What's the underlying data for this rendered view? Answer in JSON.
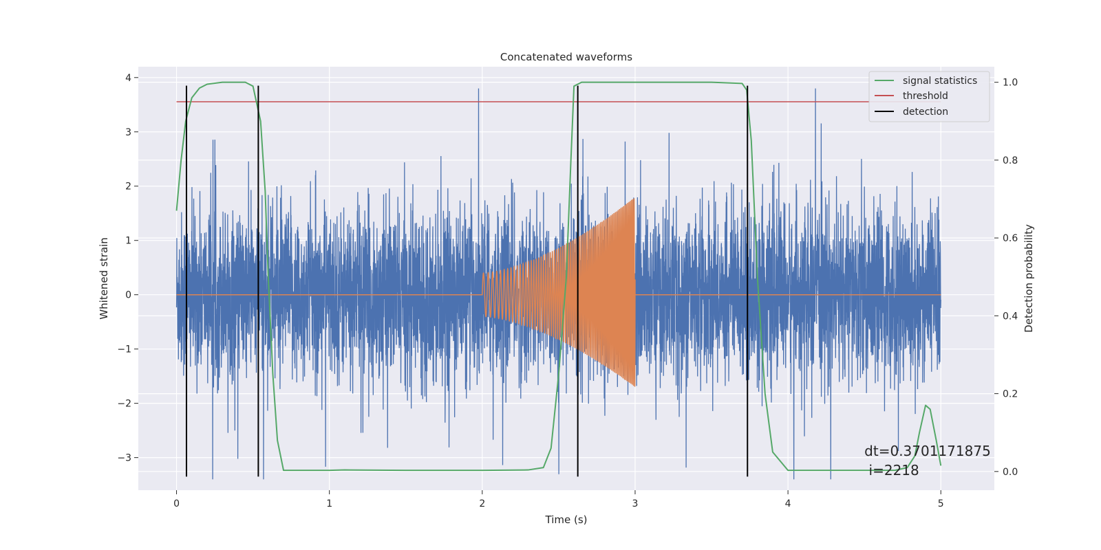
{
  "chart_data": {
    "type": "line",
    "title": "Concatenated waveforms",
    "xlabel": "Time (s)",
    "ylabel": "Whitened strain",
    "ylabel_right": "Detection probability",
    "xlim": [
      -0.25,
      5.35
    ],
    "ylim": [
      -3.6,
      4.2
    ],
    "ylim_right": [
      -0.048,
      1.04
    ],
    "xticks": [
      0,
      1,
      2,
      3,
      4,
      5
    ],
    "yticks": [
      -3,
      -2,
      -1,
      0,
      1,
      2,
      3,
      4
    ],
    "yticks_right": [
      0.0,
      0.2,
      0.4,
      0.6,
      0.8,
      1.0
    ],
    "xtick_labels": [
      "0",
      "1",
      "2",
      "3",
      "4",
      "5"
    ],
    "ytick_labels": [
      "−3",
      "−2",
      "−1",
      "0",
      "1",
      "2",
      "3",
      "4"
    ],
    "ytick_labels_right": [
      "0.0",
      "0.2",
      "0.4",
      "0.6",
      "0.8",
      "1.0"
    ],
    "grid": true,
    "legend_position": "top-right",
    "legend": [
      "signal statistics",
      "threshold",
      "detection"
    ],
    "colors": {
      "noise": "#4c72b0",
      "injection": "#dd8452",
      "signal_statistics": "#55a868",
      "threshold": "#c44e52",
      "detection": "#000000",
      "background": "#eaeaf2",
      "grid": "#ffffff"
    },
    "noise": {
      "x_range": [
        0,
        5
      ],
      "amplitude_typical": 1.0,
      "peak_max": 3.8,
      "peak_min": -3.4
    },
    "injection": {
      "x_range": [
        2.0,
        3.0
      ],
      "envelope_start": 0.4,
      "envelope_end_top": 1.8,
      "envelope_end_bottom": -1.7
    },
    "signal_statistics": {
      "x": [
        0.0,
        0.03,
        0.06,
        0.1,
        0.15,
        0.2,
        0.3,
        0.45,
        0.5,
        0.55,
        0.58,
        0.6,
        0.63,
        0.66,
        0.7,
        1.0,
        1.1,
        1.5,
        2.0,
        2.3,
        2.4,
        2.45,
        2.5,
        2.55,
        2.58,
        2.6,
        2.65,
        3.5,
        3.7,
        3.73,
        3.76,
        3.8,
        3.85,
        3.9,
        4.0,
        4.7,
        4.78,
        4.83,
        4.86,
        4.9,
        4.93,
        4.97,
        5.0
      ],
      "y": [
        0.67,
        0.8,
        0.9,
        0.96,
        0.985,
        0.995,
        1.0,
        1.0,
        0.99,
        0.9,
        0.72,
        0.5,
        0.25,
        0.08,
        0.003,
        0.003,
        0.004,
        0.003,
        0.003,
        0.004,
        0.01,
        0.06,
        0.25,
        0.5,
        0.8,
        0.99,
        1.0,
        1.0,
        0.997,
        0.98,
        0.85,
        0.5,
        0.2,
        0.05,
        0.003,
        0.003,
        0.01,
        0.04,
        0.1,
        0.17,
        0.16,
        0.08,
        0.015
      ]
    },
    "threshold": 0.95,
    "detections": [
      0.065,
      0.535,
      2.625,
      3.735
    ],
    "annotation": {
      "lines": [
        "dt=0.3701171875",
        " i=2218"
      ],
      "x": 4.5,
      "y": -2.97
    }
  }
}
